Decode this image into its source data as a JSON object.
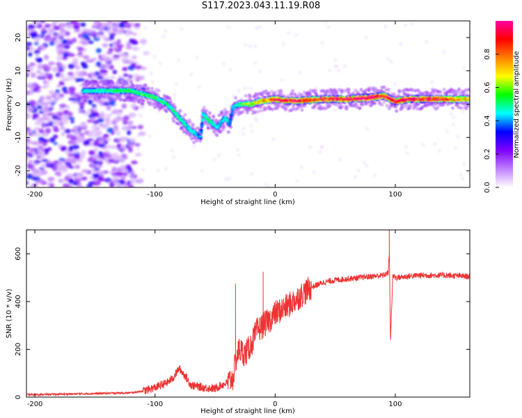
{
  "title": "S117.2023.043.11.19.R08",
  "chart_data": [
    {
      "type": "heatmap",
      "xlabel": "Height of straight line (km)",
      "ylabel": "Frequency (Hz)",
      "xlim": [
        -207,
        162
      ],
      "ylim": [
        -25,
        25
      ],
      "x_ticks": [
        -200,
        -100,
        0,
        100
      ],
      "y_ticks": [
        -20,
        -10,
        0,
        10,
        20
      ],
      "colorbar": {
        "label": "Normalized spectral amplitude",
        "range": [
          0,
          1
        ],
        "ticks": [
          0.0,
          0.2,
          0.4,
          0.6,
          0.8
        ],
        "colormap": [
          "#ffffff",
          "#c080ff",
          "#7f00ff",
          "#0000ff",
          "#00ffff",
          "#00ff00",
          "#ffff00",
          "#ff8000",
          "#ff0000",
          "#ff00a0"
        ]
      },
      "noise_region_x": [
        -207,
        -115
      ],
      "ridge": {
        "x": [
          -160,
          -140,
          -120,
          -110,
          -100,
          -90,
          -80,
          -70,
          -62,
          -60,
          -55,
          -48,
          -42,
          -38,
          -35,
          -30,
          -20,
          -10,
          0,
          10,
          20,
          40,
          60,
          80,
          90,
          100,
          110,
          120,
          140,
          162
        ],
        "freq": [
          4,
          4,
          4,
          3,
          2,
          0,
          -4,
          -8,
          -10,
          -3,
          -5,
          -7,
          -4,
          -6,
          -1,
          0,
          0,
          1,
          1.5,
          1,
          1,
          1.5,
          1.5,
          2,
          2.5,
          0.8,
          1.5,
          1.5,
          1.5,
          1.5
        ],
        "amplitude": [
          0.35,
          0.4,
          0.45,
          0.45,
          0.45,
          0.4,
          0.4,
          0.35,
          0.3,
          0.4,
          0.4,
          0.35,
          0.35,
          0.3,
          0.35,
          0.4,
          0.55,
          0.65,
          0.8,
          0.85,
          0.85,
          0.8,
          0.85,
          0.9,
          0.8,
          0.85,
          0.9,
          0.85,
          0.8,
          0.6
        ]
      }
    },
    {
      "type": "line",
      "xlabel": "Height of straight line (km)",
      "ylabel": "SNR (10 * v/v)",
      "xlim": [
        -207,
        162
      ],
      "ylim": [
        0,
        700
      ],
      "x_ticks": [
        -200,
        -100,
        0,
        100
      ],
      "y_ticks": [
        0,
        200,
        400,
        600
      ],
      "color": "#ee3333",
      "series": [
        {
          "x": [
            -207,
            -180,
            -150,
            -120,
            -110,
            -100,
            -90,
            -85,
            -80,
            -75,
            -70,
            -60,
            -50,
            -45,
            -40,
            -35,
            -33,
            -30,
            -25,
            -20,
            -15,
            -10,
            -5,
            0,
            10,
            20,
            30,
            40,
            50,
            60,
            70,
            80,
            90,
            94,
            95,
            96,
            98,
            100,
            110,
            120,
            140,
            162
          ],
          "y": [
            10,
            12,
            15,
            18,
            25,
            40,
            60,
            80,
            120,
            90,
            50,
            40,
            35,
            50,
            60,
            80,
            150,
            200,
            180,
            220,
            280,
            300,
            320,
            350,
            380,
            420,
            460,
            480,
            490,
            495,
            500,
            505,
            510,
            520,
            600,
            250,
            510,
            500,
            505,
            510,
            510,
            505
          ]
        }
      ],
      "spikes": [
        {
          "x": -33,
          "y": 475
        },
        {
          "x": -10,
          "y": 525
        },
        {
          "x": 95,
          "y": 700
        },
        {
          "x": 96,
          "y": 245
        }
      ]
    }
  ]
}
